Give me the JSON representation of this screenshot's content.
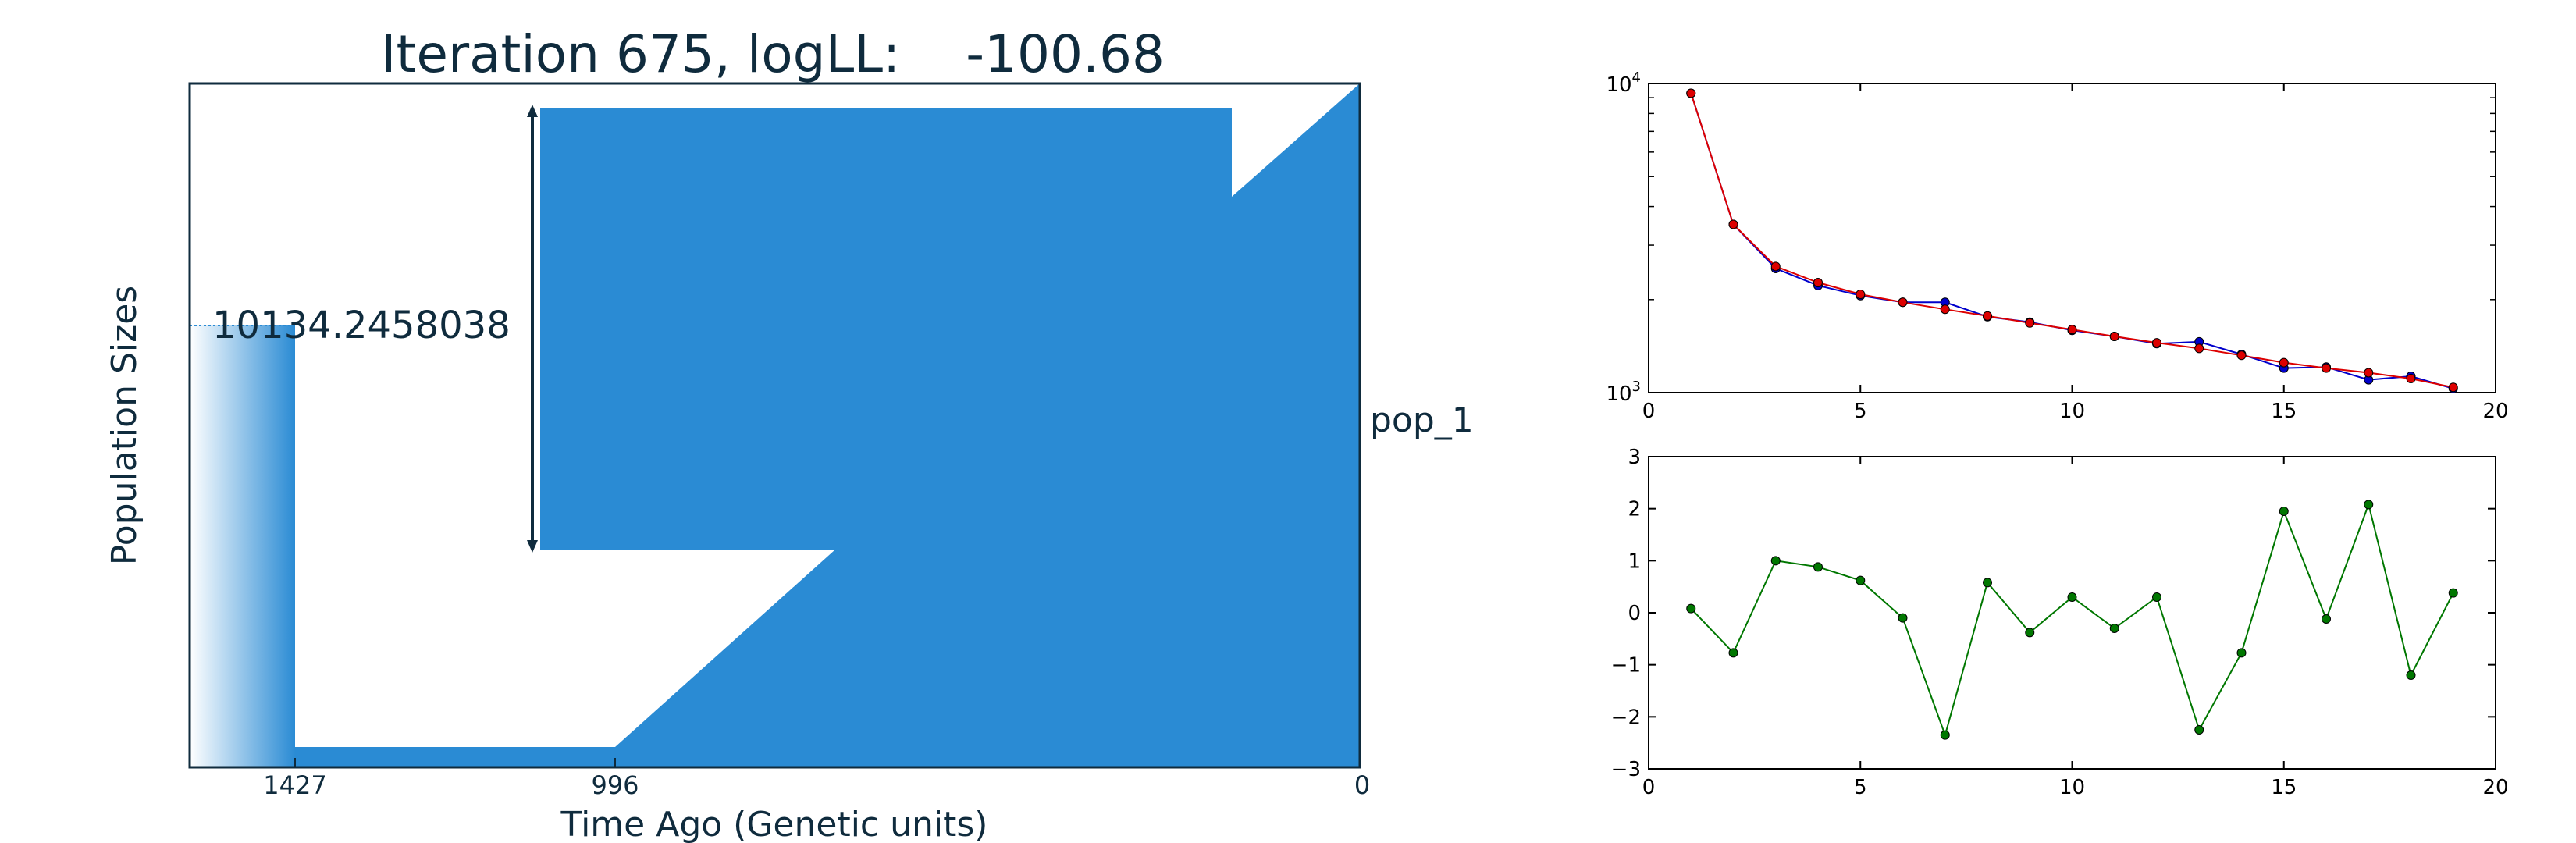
{
  "colors": {
    "fill": "#2a8bd4",
    "text": "#0f2b3d",
    "blue_series": "#0000cc",
    "red_series": "#dd0000",
    "green_series": "#007700"
  },
  "demography": {
    "title_prefix": "Iteration 675, logLL:",
    "title_value": "-100.68",
    "ylabel": "Population Sizes",
    "xlabel": "Time Ago (Genetic units)",
    "pop_label": "pop_1",
    "size_annotation": "10134.2458038",
    "x_ticks": [
      "1427",
      "996",
      "0"
    ]
  },
  "chart_data": [
    {
      "type": "line",
      "title": "",
      "xlabel": "",
      "ylabel": "",
      "yscale": "log",
      "xlim": [
        0,
        20
      ],
      "ylim": [
        1000,
        10000
      ],
      "x_ticks": [
        "0",
        "5",
        "10",
        "15",
        "20"
      ],
      "y_ticks": [
        {
          "base": "10",
          "exp": "3"
        },
        {
          "base": "10",
          "exp": "4"
        }
      ],
      "x": [
        1,
        2,
        3,
        4,
        5,
        6,
        7,
        8,
        9,
        10,
        11,
        12,
        13,
        14,
        15,
        16,
        17,
        18,
        19
      ],
      "series": [
        {
          "color": "blue",
          "values": [
            9300,
            3500,
            2520,
            2220,
            2060,
            1960,
            1960,
            1760,
            1690,
            1590,
            1520,
            1440,
            1460,
            1330,
            1200,
            1210,
            1100,
            1130,
            1030
          ]
        },
        {
          "color": "red",
          "values": [
            9300,
            3500,
            2560,
            2270,
            2080,
            1960,
            1860,
            1770,
            1680,
            1600,
            1520,
            1450,
            1390,
            1320,
            1250,
            1200,
            1160,
            1110,
            1040
          ]
        }
      ]
    },
    {
      "type": "line",
      "title": "",
      "xlabel": "",
      "ylabel": "",
      "xlim": [
        0,
        20
      ],
      "ylim": [
        -3,
        3
      ],
      "x_ticks": [
        "0",
        "5",
        "10",
        "15",
        "20"
      ],
      "y_ticks": [
        "−3",
        "−2",
        "−1",
        "0",
        "1",
        "2",
        "3"
      ],
      "x": [
        1,
        2,
        3,
        4,
        5,
        6,
        7,
        8,
        9,
        10,
        11,
        12,
        13,
        14,
        15,
        16,
        17,
        18,
        19
      ],
      "series": [
        {
          "color": "green",
          "values": [
            0.08,
            -0.77,
            1.0,
            0.88,
            0.62,
            -0.1,
            -2.35,
            0.58,
            -0.38,
            0.3,
            -0.3,
            0.3,
            -2.25,
            -0.77,
            1.95,
            -0.12,
            2.08,
            -1.2,
            0.38
          ]
        }
      ]
    }
  ]
}
